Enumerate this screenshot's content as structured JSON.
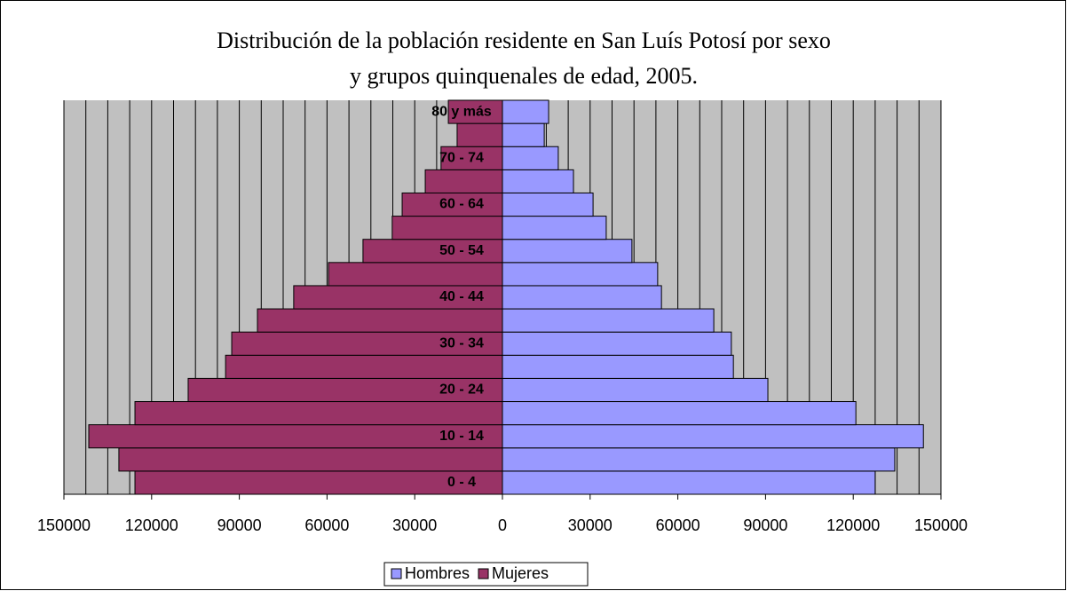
{
  "chart_data": {
    "type": "pyramid",
    "title": [
      "Distribución de la población residente en San Luís Potosí por sexo",
      "y grupos quinquenales de edad, 2005."
    ],
    "categories": [
      "0 -   4",
      null,
      "10 - 14",
      null,
      "20 - 24",
      null,
      "30 - 34",
      null,
      "40 - 44",
      null,
      "50 - 54",
      null,
      "60 - 64",
      null,
      "70 - 74",
      null,
      "80 y más"
    ],
    "series": [
      {
        "name": "Hombres",
        "color": "#9999ff",
        "values": [
          127500,
          134200,
          144000,
          120900,
          90800,
          79000,
          78300,
          72300,
          54400,
          53100,
          44300,
          35500,
          31000,
          24300,
          19100,
          14300,
          15800
        ]
      },
      {
        "name": "Mujeres",
        "color": "#993366",
        "values": [
          -125700,
          -131200,
          -141500,
          -125700,
          -107500,
          -94700,
          -92600,
          -83800,
          -71400,
          -59500,
          -47700,
          -37700,
          -34300,
          -26400,
          -21000,
          -15500,
          -18500
        ]
      }
    ],
    "xlim": [
      -150000,
      150000
    ],
    "xticks": [
      {
        "value": -150000,
        "label": "150000"
      },
      {
        "value": -120000,
        "label": "120000"
      },
      {
        "value": -90000,
        "label": "90000"
      },
      {
        "value": -60000,
        "label": "60000"
      },
      {
        "value": -30000,
        "label": "30000"
      },
      0,
      30000,
      60000,
      90000,
      120000,
      150000
    ],
    "x_gridlines": [
      -150000,
      -142500,
      -135000,
      -127500,
      -120000,
      -112500,
      -105000,
      -97500,
      -90000,
      -82500,
      -75000,
      -67500,
      -60000,
      -52500,
      -45000,
      -37500,
      -30000,
      -22500,
      -15000,
      -7500,
      0,
      7500,
      15000,
      22500,
      30000,
      37500,
      45000,
      52500,
      60000,
      67500,
      75000,
      82500,
      90000,
      97500,
      105000,
      112500,
      120000,
      127500,
      135000,
      142500,
      150000
    ],
    "grid": true,
    "plot_background": "#c0c0c0",
    "legend": "bottom"
  }
}
